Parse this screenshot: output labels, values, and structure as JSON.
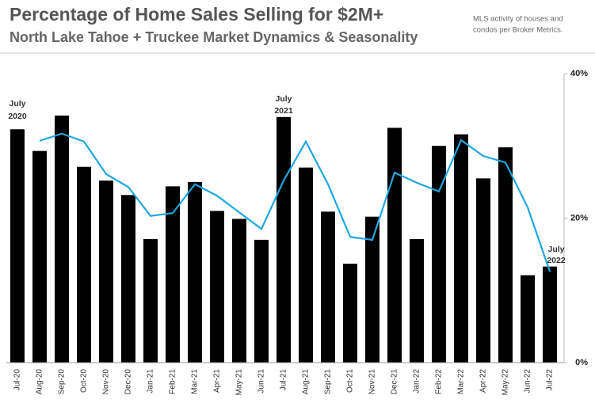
{
  "chart_data": {
    "type": "bar",
    "title": "Percentage of Home Sales Selling for $2M+",
    "subtitle": "North Lake Tahoe + Truckee Market Dynamics & Seasonality",
    "note": [
      "MLS activity of houses and",
      "condos per Broker Metrics."
    ],
    "annotations": [
      [
        "July",
        "2020"
      ],
      [
        "July",
        "2021"
      ],
      [
        "July",
        "2022"
      ]
    ],
    "categories": [
      "Jul-20",
      "Aug-20",
      "Sep-20",
      "Oct-20",
      "Nov-20",
      "Dec-20",
      "Jan-21",
      "Feb-21",
      "Mar-21",
      "Apr-21",
      "May-21",
      "Jun-21",
      "Jul-21",
      "Aug-21",
      "Sep-21",
      "Oct-21",
      "Nov-21",
      "Dec-21",
      "Jan-22",
      "Feb-22",
      "Mar-22",
      "Apr-22",
      "May-22",
      "Jun-22",
      "Jul-22"
    ],
    "series": [
      {
        "type": "bar",
        "color": "#000000",
        "values": [
          32.3,
          29.3,
          34.2,
          27.1,
          25.2,
          23.2,
          17.1,
          24.4,
          25.0,
          21.0,
          19.9,
          17.0,
          34.0,
          27.0,
          20.9,
          13.7,
          20.2,
          32.5,
          17.1,
          30.0,
          31.6,
          25.5,
          29.8,
          12.1,
          13.3
        ]
      },
      {
        "type": "line",
        "color": "#1ea7e1",
        "values": [
          null,
          30.7,
          31.7,
          30.6,
          26.1,
          24.3,
          20.3,
          20.7,
          24.7,
          23.1,
          20.8,
          18.5,
          25.2,
          30.6,
          24.7,
          17.4,
          17.0,
          26.3,
          24.9,
          23.7,
          30.8,
          28.6,
          27.7,
          21.5,
          12.6
        ]
      }
    ],
    "ylim": [
      0,
      40
    ],
    "yticks": [
      {
        "value": 0,
        "label": "0%"
      },
      {
        "value": 20,
        "label": "20%"
      },
      {
        "value": 40,
        "label": "40%"
      }
    ]
  }
}
